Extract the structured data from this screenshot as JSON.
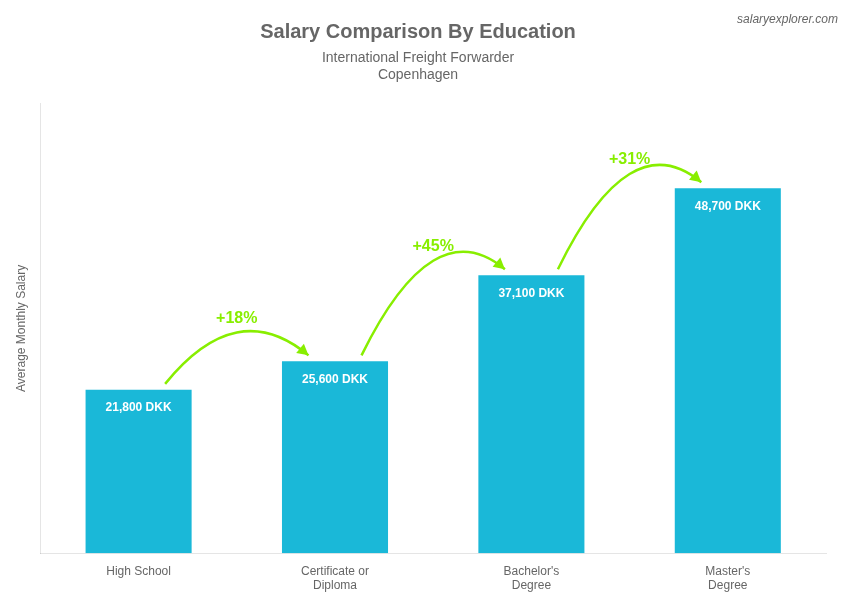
{
  "chart_data": {
    "type": "bar",
    "title": "Salary Comparison By Education",
    "subtitle": "International Freight Forwarder",
    "city": "Copenhagen",
    "source": "salaryexplorer.com",
    "ylabel": "Average Monthly Salary",
    "categories": [
      "High School",
      "Certificate or\nDiploma",
      "Bachelor's\nDegree",
      "Master's\nDegree"
    ],
    "values": [
      21800,
      25600,
      37100,
      48700
    ],
    "value_labels": [
      "21,800 DKK",
      "25,600 DKK",
      "37,100 DKK",
      "48,700 DKK"
    ],
    "data_labels": true,
    "color": "#1ab8d8",
    "ylim": [
      0,
      60000
    ],
    "grid": false,
    "tick_labels": "x",
    "annotations": [
      {
        "text": "+18%",
        "from": "High School",
        "to": "Certificate or\nDiploma",
        "color": "#88ee00"
      },
      {
        "text": "+45%",
        "from": "Certificate or\nDiploma",
        "to": "Bachelor's\nDegree",
        "color": "#88ee00"
      },
      {
        "text": "+31%",
        "from": "Bachelor's\nDegree",
        "to": "Master's\nDegree",
        "color": "#88ee00"
      }
    ]
  }
}
